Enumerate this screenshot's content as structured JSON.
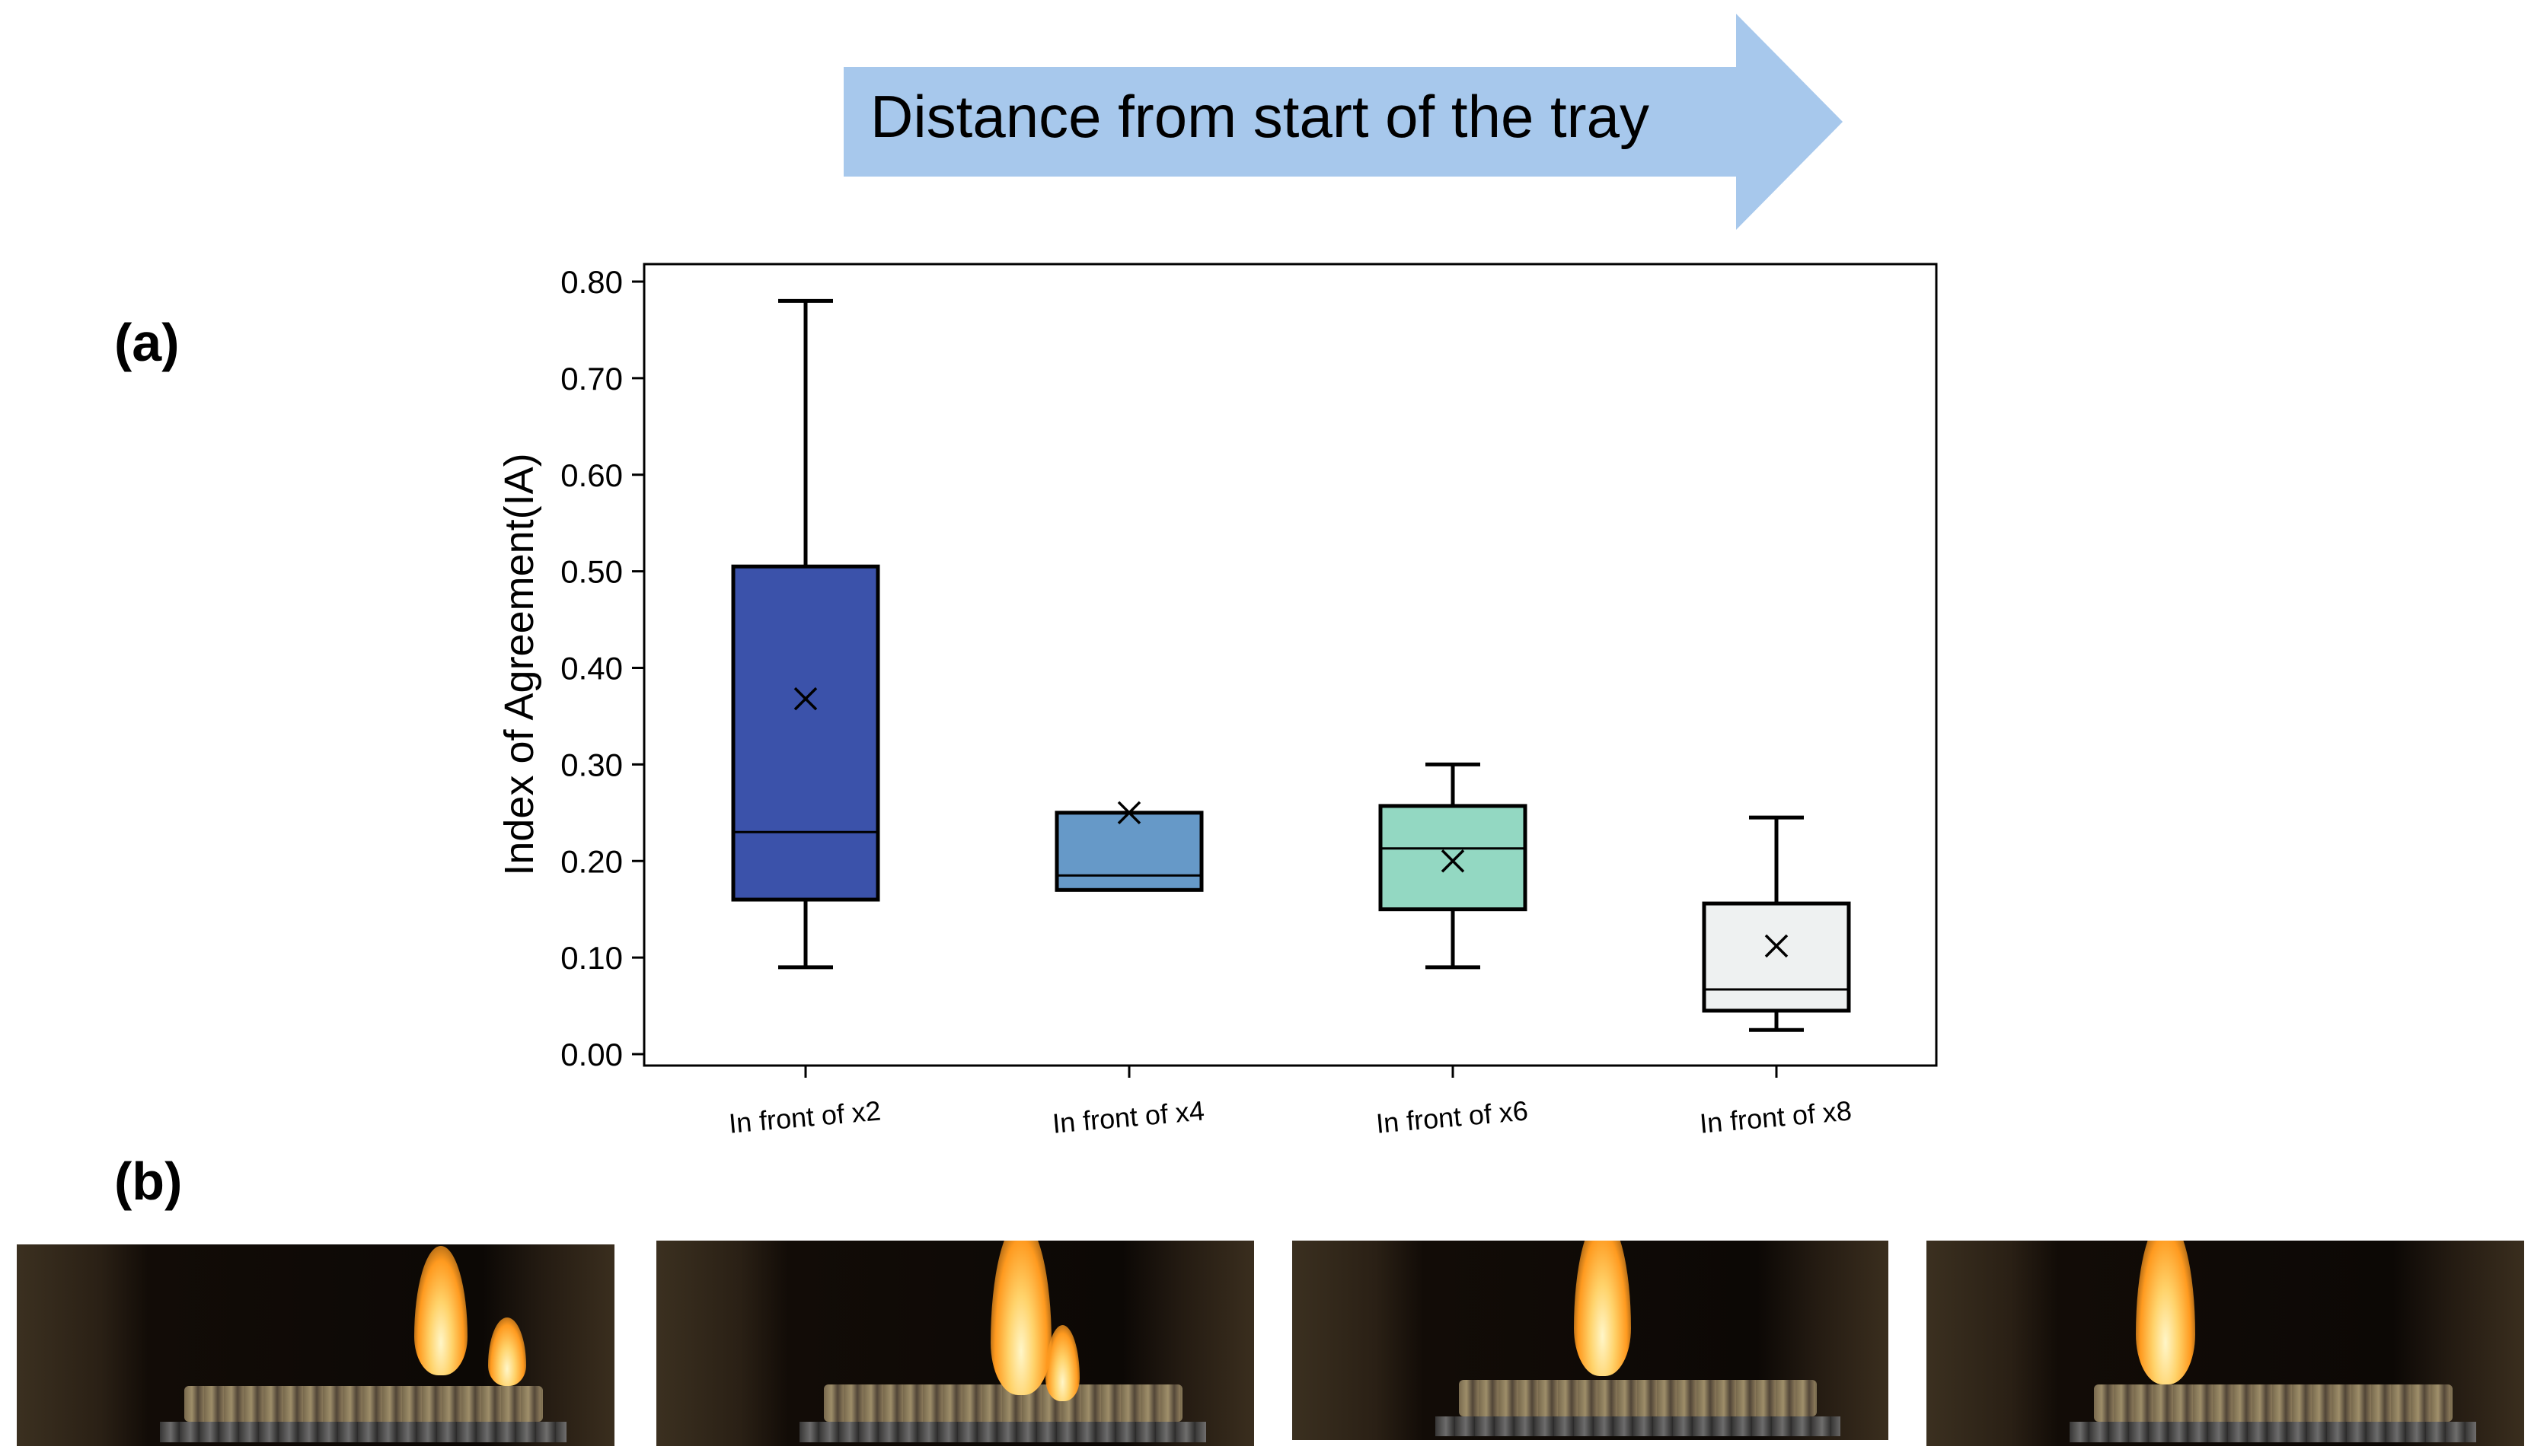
{
  "banner": {
    "text": "Distance from start of the tray",
    "color": "#a7c8ec"
  },
  "panel_labels": {
    "a": "(a)",
    "b": "(b)"
  },
  "chart_data": {
    "type": "box",
    "ylabel": "Index of Agreement(IA)",
    "xlabel": "",
    "ylim": [
      0,
      0.8
    ],
    "yticks": [
      "0.00",
      "0.10",
      "0.20",
      "0.30",
      "0.40",
      "0.50",
      "0.60",
      "0.70",
      "0.80"
    ],
    "ytick_values": [
      0,
      0.1,
      0.2,
      0.3,
      0.4,
      0.5,
      0.6,
      0.7,
      0.8
    ],
    "grid": false,
    "categories": [
      "In front of x2",
      "In front of x4",
      "In front of x6",
      "In front of x8"
    ],
    "boxes": [
      {
        "category": "In front of x2",
        "whisker_low": 0.09,
        "q1": 0.16,
        "median": 0.23,
        "q3": 0.505,
        "whisker_high": 0.78,
        "mean": 0.368,
        "color": "#3b52aa"
      },
      {
        "category": "In front of x4",
        "whisker_low": 0.17,
        "q1": 0.17,
        "median": 0.185,
        "q3": 0.25,
        "whisker_high": 0.25,
        "mean": 0.25,
        "color": "#6699c8"
      },
      {
        "category": "In front of x6",
        "whisker_low": 0.09,
        "q1": 0.15,
        "median": 0.213,
        "q3": 0.257,
        "whisker_high": 0.3,
        "mean": 0.2,
        "color": "#93d8c2"
      },
      {
        "category": "In front of x8",
        "whisker_low": 0.025,
        "q1": 0.045,
        "median": 0.067,
        "q3": 0.156,
        "whisker_high": 0.245,
        "mean": 0.112,
        "color": "#eef1f1"
      }
    ]
  },
  "photos": [
    {
      "name": "flame-photo-x2"
    },
    {
      "name": "flame-photo-x4"
    },
    {
      "name": "flame-photo-x6"
    },
    {
      "name": "flame-photo-x8"
    }
  ]
}
